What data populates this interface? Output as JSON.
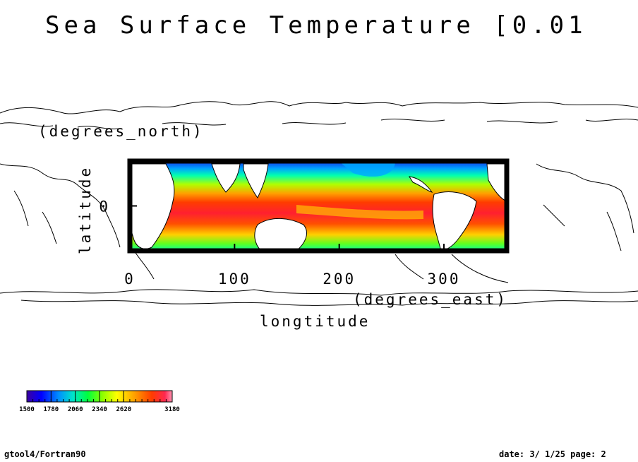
{
  "header": {
    "title": "Sea Surface Temperature [0.01"
  },
  "footer": {
    "left": "gtool4/Fortran90",
    "right": "date: 3/ 1/25 page: 2"
  },
  "colors": {
    "frame": "#000000",
    "coast": "#000000",
    "land": "#ffffff",
    "background": "#ffffff"
  },
  "chart_data": {
    "type": "heatmap",
    "title": "Sea Surface Temperature [0.01",
    "xlabel": "longtitude",
    "xunits": "(degrees_east)",
    "ylabel": "latitude",
    "yunits": "(degrees_north)",
    "xlim": [
      0,
      360
    ],
    "ylim": [
      -30,
      30
    ],
    "xticks": [
      0,
      100,
      200,
      300
    ],
    "yticks": [
      0
    ],
    "colorbar": {
      "ticks": [
        1500,
        1780,
        2060,
        2340,
        2620,
        3180
      ],
      "range": [
        1500,
        3180
      ],
      "colors": [
        "#3c00a0",
        "#0000ff",
        "#0090ff",
        "#00e6c8",
        "#00ff3c",
        "#8cff00",
        "#ffff00",
        "#ffa000",
        "#ff3c00",
        "#ff2850",
        "#ff96b4"
      ]
    }
  }
}
